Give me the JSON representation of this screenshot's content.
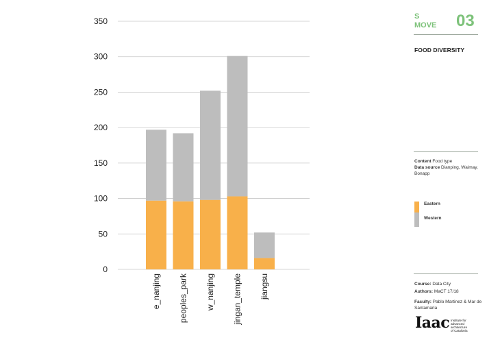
{
  "header": {
    "code_line1": "S",
    "code_line2": "MOVE",
    "number": "03",
    "title": "FOOD DIVERSITY"
  },
  "colors": {
    "accent": "#7dc27a",
    "eastern": "#f8b04a",
    "western": "#bdbdbd",
    "gridline": "#c8c8c8"
  },
  "info": {
    "content_label": "Content",
    "content_value": "Food type",
    "source_label": "Data source",
    "source_value": "Dianping, Waimay, Bonapp"
  },
  "legend": {
    "items": [
      {
        "label": "Eastern"
      },
      {
        "label": "Western"
      }
    ]
  },
  "credits": {
    "course_label": "Course:",
    "course_value": "Data City",
    "authors_label": "Authors:",
    "authors_value": "MaCT 17/18",
    "faculty_label": "Faculty:",
    "faculty_value": "Pablo Martinez  & Mar de Santamaria"
  },
  "logo": {
    "mark": "Iaac",
    "text_lines": [
      "Institute for",
      "advanced",
      "architecture",
      "of Catalonia"
    ]
  },
  "chart_data": {
    "type": "bar",
    "stacked": true,
    "categories": [
      "e_nanjing",
      "peoples_park",
      "w_nanjing",
      "jingan_temple",
      "jiangsu"
    ],
    "series": [
      {
        "name": "Eastern",
        "values": [
          97,
          96,
          98,
          103,
          16
        ]
      },
      {
        "name": "Western",
        "values": [
          100,
          96,
          154,
          198,
          36
        ]
      }
    ],
    "ylim": [
      0,
      350
    ],
    "yticks": [
      0,
      50,
      100,
      150,
      200,
      250,
      300,
      350
    ],
    "grid": true,
    "legend_position": "right"
  }
}
